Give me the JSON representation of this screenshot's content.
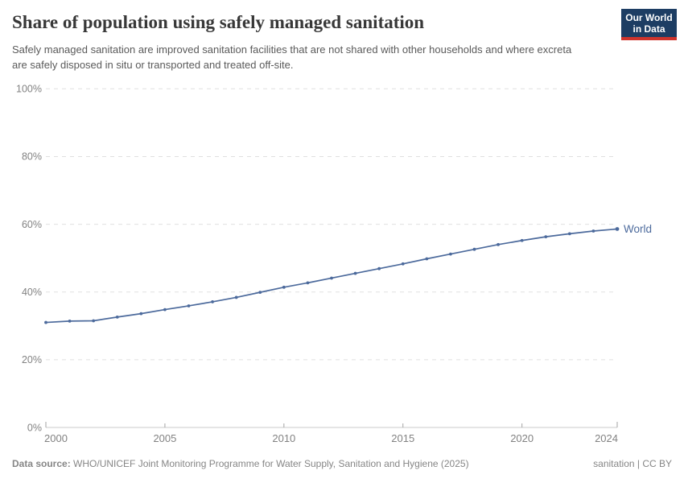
{
  "header": {
    "title": "Share of population using safely managed sanitation",
    "subtitle": "Safely managed sanitation are improved sanitation facilities that are not shared with other households and where excreta are safely disposed in situ or transported and treated off-site.",
    "logo": {
      "line1": "Our World",
      "line2": "in Data"
    }
  },
  "chart_data": {
    "type": "line",
    "title": "Share of population using safely managed sanitation",
    "xlabel": "",
    "ylabel": "",
    "xlim": [
      2000,
      2024
    ],
    "ylim": [
      0,
      100
    ],
    "grid": "horizontal-dashed",
    "legend_position": "end-of-line-label",
    "x_tick_values": [
      2000,
      2005,
      2010,
      2015,
      2020,
      2024
    ],
    "x_tick_labels": [
      "2000",
      "2005",
      "2010",
      "2015",
      "2020",
      "2024"
    ],
    "y_tick_values": [
      0,
      20,
      40,
      60,
      80,
      100
    ],
    "y_tick_labels": [
      "0%",
      "20%",
      "40%",
      "60%",
      "80%",
      "100%"
    ],
    "series": [
      {
        "name": "World",
        "color": "#4C6A9C",
        "x": [
          2000,
          2001,
          2002,
          2003,
          2004,
          2005,
          2006,
          2007,
          2008,
          2009,
          2010,
          2011,
          2012,
          2013,
          2014,
          2015,
          2016,
          2017,
          2018,
          2019,
          2020,
          2021,
          2022,
          2023,
          2024
        ],
        "values": [
          31.0,
          31.4,
          31.5,
          32.6,
          33.6,
          34.8,
          35.9,
          37.1,
          38.4,
          39.9,
          41.4,
          42.7,
          44.1,
          45.5,
          46.9,
          48.3,
          49.8,
          51.2,
          52.6,
          54.0,
          55.2,
          56.3,
          57.2,
          58.0,
          58.6
        ]
      }
    ]
  },
  "footer": {
    "datasource_label": "Data source:",
    "datasource_text": " WHO/UNICEF Joint Monitoring Programme for Water Supply, Sanitation and Hygiene (2025)",
    "right_text": "sanitation | CC BY"
  },
  "colors": {
    "line": "#4C6A9C",
    "logo_background": "#1d3d63",
    "logo_accent": "#d0342c",
    "grid": "#e0e0e0",
    "axis": "#cbcbcb",
    "tick": "#a3a3a3",
    "tick_label": "#828282",
    "title_text": "#383838",
    "subtitle_text": "#5a5a5a",
    "footer_text": "#868686"
  }
}
